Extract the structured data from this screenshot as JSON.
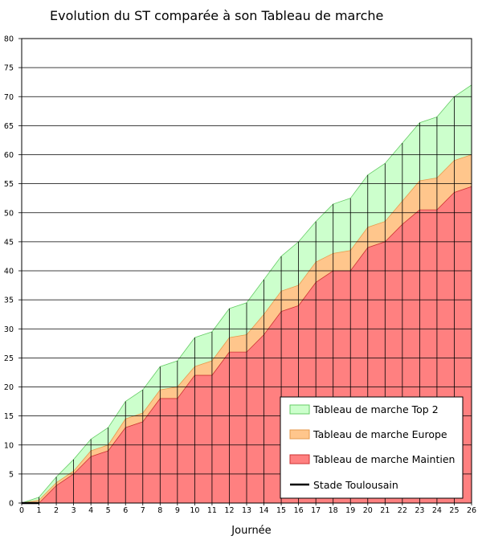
{
  "chart_data": {
    "type": "area",
    "title": "Evolution du ST comparée à son Tableau de marche",
    "xlabel": "Journée",
    "ylabel": "",
    "xlim": [
      0,
      26
    ],
    "ylim": [
      0,
      80
    ],
    "y_ticks": [
      0,
      5,
      10,
      15,
      20,
      25,
      30,
      35,
      40,
      45,
      50,
      55,
      60,
      65,
      70,
      75,
      80
    ],
    "x": [
      0,
      1,
      2,
      3,
      4,
      5,
      6,
      7,
      8,
      9,
      10,
      11,
      12,
      13,
      14,
      15,
      16,
      17,
      18,
      19,
      20,
      21,
      22,
      23,
      24,
      25,
      26
    ],
    "grid": "horizontal",
    "legend_position": "bottom-right",
    "series": [
      {
        "name": "Tableau de marche Top 2",
        "color": "#ccffcc",
        "stroke": "#66cc66",
        "values": [
          0,
          1,
          4.5,
          7.5,
          11,
          13,
          17.5,
          19.5,
          23.5,
          24.5,
          28.5,
          29.5,
          33.5,
          34.5,
          38.5,
          42.5,
          45,
          48.5,
          51.5,
          52.5,
          56.5,
          58.5,
          62,
          65.5,
          66.5,
          70,
          72
        ]
      },
      {
        "name": "Tableau de marche Europe",
        "color": "#ffc68c",
        "stroke": "#e69a4c",
        "values": [
          0,
          0.5,
          3.5,
          5.5,
          9,
          10,
          14.5,
          15.5,
          19.5,
          20,
          23.5,
          24.5,
          28.5,
          29,
          32.5,
          36.5,
          37.5,
          41.5,
          43,
          43.5,
          47.5,
          48.5,
          52,
          55.5,
          56,
          59,
          60
        ]
      },
      {
        "name": "Tableau de marche Maintien",
        "color": "#ff8080",
        "stroke": "#cc3333",
        "values": [
          0,
          0,
          3,
          5,
          8,
          9,
          13,
          14,
          18,
          18,
          22,
          22,
          26,
          26,
          29,
          33,
          34,
          38,
          40,
          40,
          44,
          45,
          48,
          50.5,
          50.5,
          53.5,
          54.5
        ]
      }
    ],
    "line_series": {
      "name": "Stade Toulousain",
      "color": "#000000",
      "values": [
        0,
        0
      ]
    }
  }
}
